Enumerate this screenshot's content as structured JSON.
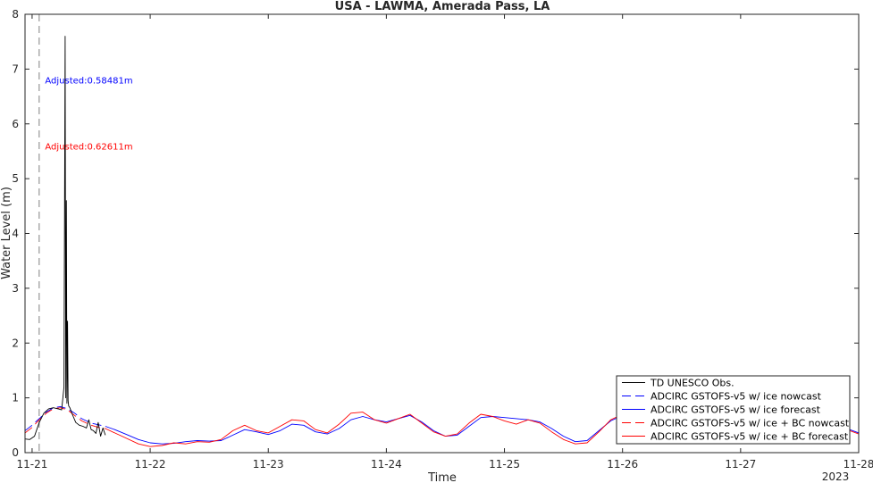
{
  "chart_data": {
    "type": "line",
    "title": "USA - LAWMA, Amerada Pass, LA",
    "xlabel": "Time",
    "ylabel": "Water Level (m)",
    "x_tick_labels": [
      "11-21",
      "11-22",
      "11-23",
      "11-24",
      "11-25",
      "11-26",
      "11-27",
      "11-28"
    ],
    "x_secondary_label": "2023",
    "xlim_days": [
      20.94,
      28.0
    ],
    "ylim": [
      0,
      8
    ],
    "y_ticks": [
      0,
      1,
      2,
      3,
      4,
      5,
      6,
      7,
      8
    ],
    "nowcast_forecast_divider_day": 21.06,
    "grid": false,
    "legend_position": "bottom-right",
    "annotations": [
      {
        "text": "Adjusted:0.58481m",
        "color": "#0000ff",
        "x_day": 21.2,
        "y": 6.8
      },
      {
        "text": "Adjusted:0.62611m",
        "color": "#ff0000",
        "x_day": 21.2,
        "y": 5.6
      }
    ],
    "series": [
      {
        "name": "TD UNESCO Obs.",
        "color": "#000000",
        "dash": "solid",
        "x_day": [
          20.94,
          20.98,
          21.02,
          21.06,
          21.1,
          21.14,
          21.18,
          21.22,
          21.25,
          21.27,
          21.28,
          21.285,
          21.29,
          21.295,
          21.3,
          21.305,
          21.31,
          21.32,
          21.34,
          21.37,
          21.4,
          21.43,
          21.46,
          21.48,
          21.5,
          21.52,
          21.54,
          21.56,
          21.58,
          21.6,
          21.62
        ],
        "y": [
          0.25,
          0.24,
          0.3,
          0.55,
          0.72,
          0.8,
          0.82,
          0.8,
          0.78,
          1.2,
          7.6,
          1.0,
          4.6,
          0.9,
          2.4,
          0.95,
          0.85,
          0.82,
          0.7,
          0.55,
          0.5,
          0.48,
          0.45,
          0.6,
          0.42,
          0.4,
          0.35,
          0.55,
          0.3,
          0.45,
          0.32
        ]
      },
      {
        "name": "ADCIRC GSTOFS-v5  w/ ice nowcast",
        "color": "#0000ff",
        "dash": "dashed",
        "x_day": [
          20.94,
          21.0,
          21.06,
          21.12,
          21.18,
          21.24,
          21.3,
          21.36,
          21.42,
          21.5,
          21.58,
          21.62
        ],
        "y": [
          0.4,
          0.5,
          0.62,
          0.74,
          0.82,
          0.84,
          0.8,
          0.72,
          0.62,
          0.54,
          0.5,
          0.48
        ]
      },
      {
        "name": "ADCIRC GSTOFS-v5  w/ ice forecast",
        "color": "#0000ff",
        "dash": "solid",
        "x_day": [
          21.62,
          21.7,
          21.8,
          21.9,
          22.0,
          22.1,
          22.2,
          22.3,
          22.4,
          22.5,
          22.6,
          22.7,
          22.8,
          22.9,
          23.0,
          23.1,
          23.2,
          23.3,
          23.4,
          23.5,
          23.6,
          23.7,
          23.8,
          23.9,
          24.0,
          24.1,
          24.2,
          24.3,
          24.4,
          24.5,
          24.6,
          24.7,
          24.8,
          24.9,
          25.0,
          25.1,
          25.2,
          25.3,
          25.4,
          25.5,
          25.6,
          25.7,
          25.8,
          25.9,
          26.0,
          26.1,
          26.2,
          26.3,
          26.4,
          26.5,
          26.6,
          26.7,
          26.8,
          26.9,
          27.0,
          27.1,
          27.2,
          27.3,
          27.4,
          27.5,
          27.6,
          27.7,
          27.8,
          27.9,
          28.0
        ],
        "y": [
          0.48,
          0.42,
          0.33,
          0.24,
          0.18,
          0.16,
          0.17,
          0.2,
          0.22,
          0.21,
          0.22,
          0.32,
          0.42,
          0.38,
          0.33,
          0.4,
          0.52,
          0.5,
          0.38,
          0.34,
          0.44,
          0.6,
          0.66,
          0.6,
          0.56,
          0.62,
          0.68,
          0.56,
          0.4,
          0.3,
          0.32,
          0.48,
          0.64,
          0.66,
          0.64,
          0.62,
          0.6,
          0.56,
          0.44,
          0.3,
          0.2,
          0.22,
          0.4,
          0.58,
          0.68,
          0.66,
          0.56,
          0.48,
          0.44,
          0.42,
          0.44,
          0.52,
          0.58,
          0.6,
          0.56,
          0.5,
          0.44,
          0.4,
          0.4,
          0.44,
          0.48,
          0.5,
          0.48,
          0.44,
          0.36
        ]
      },
      {
        "name": "ADCIRC GSTOFS-v5  w/ ice + BC nowcast",
        "color": "#ff0000",
        "dash": "dashed",
        "x_day": [
          20.94,
          21.0,
          21.06,
          21.12,
          21.18,
          21.24,
          21.3,
          21.36,
          21.42,
          21.5,
          21.58,
          21.62
        ],
        "y": [
          0.36,
          0.46,
          0.6,
          0.72,
          0.8,
          0.82,
          0.78,
          0.68,
          0.58,
          0.5,
          0.45,
          0.44
        ]
      },
      {
        "name": "ADCIRC GSTOFS-v5  w/ ice + BC forecast",
        "color": "#ff0000",
        "dash": "solid",
        "x_day": [
          21.62,
          21.7,
          21.8,
          21.9,
          22.0,
          22.1,
          22.2,
          22.3,
          22.4,
          22.5,
          22.6,
          22.7,
          22.8,
          22.9,
          23.0,
          23.1,
          23.2,
          23.3,
          23.4,
          23.5,
          23.6,
          23.7,
          23.8,
          23.9,
          24.0,
          24.1,
          24.2,
          24.3,
          24.4,
          24.5,
          24.6,
          24.7,
          24.8,
          24.9,
          25.0,
          25.1,
          25.2,
          25.3,
          25.4,
          25.5,
          25.6,
          25.7,
          25.8,
          25.9,
          26.0,
          26.1,
          26.2,
          26.3,
          26.4,
          26.5,
          26.6,
          26.7,
          26.8,
          26.9,
          27.0,
          27.1,
          27.2,
          27.3,
          27.4,
          27.5,
          27.6,
          27.7,
          27.8,
          27.9,
          28.0
        ],
        "y": [
          0.44,
          0.36,
          0.26,
          0.16,
          0.11,
          0.13,
          0.18,
          0.16,
          0.2,
          0.19,
          0.24,
          0.4,
          0.5,
          0.4,
          0.36,
          0.48,
          0.6,
          0.58,
          0.42,
          0.36,
          0.52,
          0.72,
          0.74,
          0.6,
          0.54,
          0.62,
          0.7,
          0.54,
          0.38,
          0.3,
          0.34,
          0.54,
          0.7,
          0.66,
          0.58,
          0.52,
          0.6,
          0.54,
          0.38,
          0.24,
          0.16,
          0.18,
          0.38,
          0.6,
          0.7,
          0.66,
          0.54,
          0.44,
          0.4,
          0.4,
          0.46,
          0.56,
          0.62,
          0.62,
          0.56,
          0.5,
          0.42,
          0.38,
          0.4,
          0.46,
          0.5,
          0.5,
          0.46,
          0.42,
          0.34
        ]
      }
    ]
  }
}
